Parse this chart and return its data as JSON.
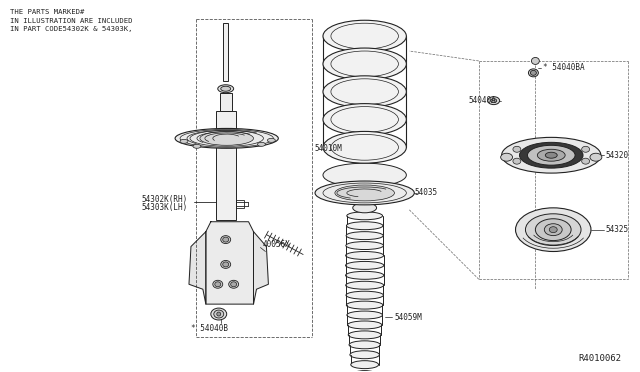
{
  "bg_color": "#ffffff",
  "line_color": "#222222",
  "text_color": "#222222",
  "title_text": "THE PARTS MARKED#\nIN ILLUSTRATION ARE INCLUDED\nIN PART CODE54302K & 54303K,",
  "diagram_id": "R4010062",
  "label_54010M": "54010M",
  "label_54035": "54035",
  "label_54059M": "54059M",
  "label_54302K": "54302K(RH)",
  "label_54303K": "54303K(LH)",
  "label_40056X": "40056X",
  "label_54040B": "* 54040B",
  "label_54040BA": "* 54040BA",
  "label_54040A": "54040A",
  "label_54320": "54320",
  "label_54325": "54325"
}
